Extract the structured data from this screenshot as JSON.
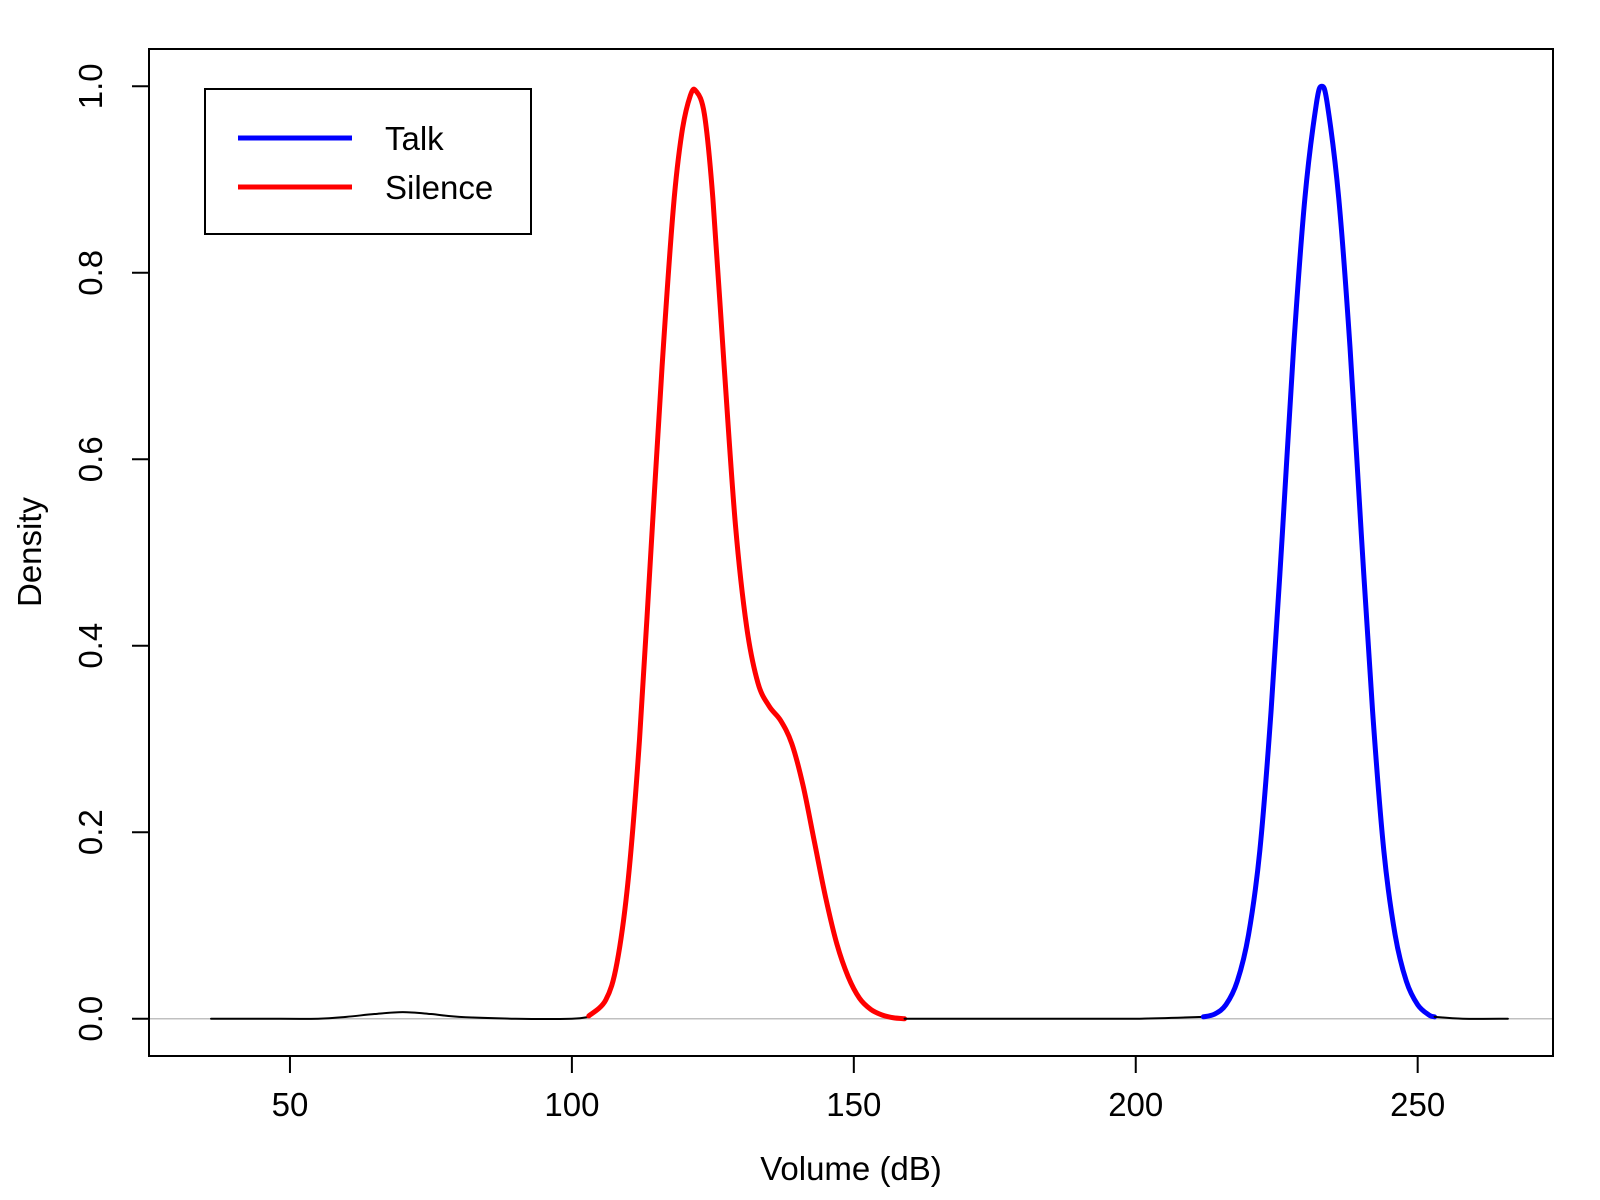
{
  "chart_data": {
    "type": "line",
    "xlabel": "Volume (dB)",
    "ylabel": "Density",
    "xlim": [
      25,
      274
    ],
    "ylim": [
      -0.04,
      1.04
    ],
    "xticks": [
      50,
      100,
      150,
      200,
      250
    ],
    "yticks": [
      0.0,
      0.2,
      0.4,
      0.6,
      0.8,
      1.0
    ],
    "xtick_labels": [
      "50",
      "100",
      "150",
      "200",
      "250"
    ],
    "ytick_labels": [
      "0.0",
      "0.2",
      "0.4",
      "0.6",
      "0.8",
      "1.0"
    ],
    "baseline": 0.0,
    "baseline_color": "#c0c0c0",
    "grid": false,
    "legend_position": "top-left",
    "legend": [
      {
        "label": "Talk",
        "color": "#0000ff"
      },
      {
        "label": "Silence",
        "color": "#ff0000"
      }
    ],
    "series": [
      {
        "color": "#000000",
        "x": [
          36,
          45,
          55,
          60,
          65,
          70,
          75,
          80,
          90,
          100,
          103
        ],
        "y": [
          0.0,
          0.0,
          0.0,
          0.002,
          0.005,
          0.007,
          0.005,
          0.002,
          0.0,
          0.0,
          0.002
        ]
      },
      {
        "name": "Silence",
        "color": "#ff0000",
        "x": [
          103,
          106,
          108,
          110,
          112,
          114,
          116,
          118,
          119.5,
          121,
          122,
          123.5,
          125,
          127,
          129,
          131,
          133,
          135,
          137,
          139,
          141,
          143,
          145,
          147,
          149,
          151,
          153,
          155,
          157,
          159
        ],
        "y": [
          0.003,
          0.02,
          0.06,
          0.15,
          0.3,
          0.5,
          0.7,
          0.87,
          0.95,
          0.99,
          0.995,
          0.97,
          0.88,
          0.7,
          0.53,
          0.42,
          0.36,
          0.335,
          0.32,
          0.295,
          0.25,
          0.19,
          0.13,
          0.08,
          0.045,
          0.022,
          0.01,
          0.004,
          0.001,
          0.0
        ]
      },
      {
        "color": "#000000",
        "x": [
          159,
          165,
          180,
          200,
          212
        ],
        "y": [
          0.0,
          0.0,
          0.0,
          0.0,
          0.002
        ]
      },
      {
        "name": "Talk",
        "color": "#0000ff",
        "x": [
          212,
          214,
          216,
          218,
          220,
          222,
          224,
          226,
          228,
          230,
          232,
          233,
          234,
          236,
          238,
          240,
          242,
          244,
          246,
          248,
          250,
          252,
          253
        ],
        "y": [
          0.002,
          0.005,
          0.015,
          0.04,
          0.09,
          0.18,
          0.33,
          0.52,
          0.72,
          0.88,
          0.98,
          1.0,
          0.98,
          0.88,
          0.72,
          0.52,
          0.33,
          0.18,
          0.09,
          0.04,
          0.015,
          0.004,
          0.002
        ]
      },
      {
        "color": "#000000",
        "x": [
          253,
          258,
          266
        ],
        "y": [
          0.002,
          0.0,
          0.0
        ]
      }
    ]
  }
}
